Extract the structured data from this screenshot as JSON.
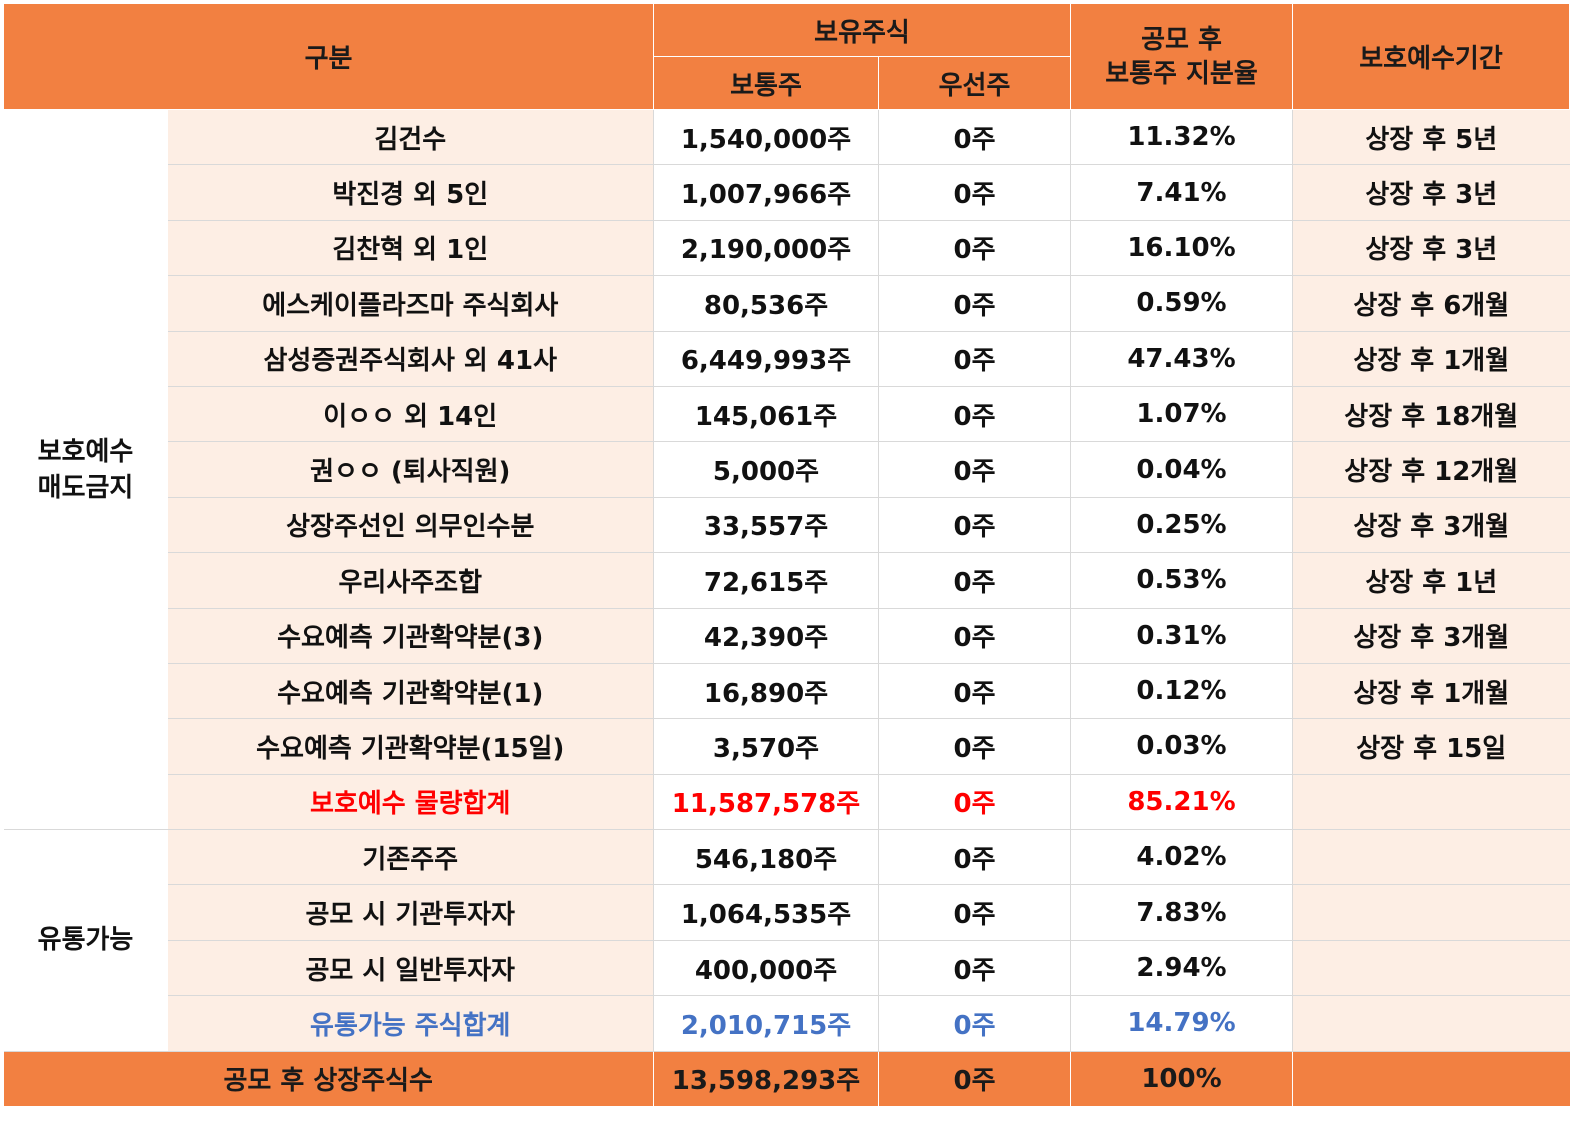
{
  "header": {
    "category": "구분",
    "holdings": "보유주식",
    "common": "보통주",
    "preferred": "우선주",
    "ratio_line1": "공모 후",
    "ratio_line2": "보통주 지분율",
    "lockup_period": "보호예수기간"
  },
  "groups": {
    "lockup_line1": "보호예수",
    "lockup_line2": "매도금지",
    "tradable": "유통가능"
  },
  "lockup_rows": [
    {
      "name": "김건수",
      "common": "1,540,000주",
      "preferred": "0주",
      "ratio": "11.32%",
      "period": "상장 후 5년"
    },
    {
      "name": "박진경 외 5인",
      "common": "1,007,966주",
      "preferred": "0주",
      "ratio": "7.41%",
      "period": "상장 후 3년"
    },
    {
      "name": "김찬혁 외 1인",
      "common": "2,190,000주",
      "preferred": "0주",
      "ratio": "16.10%",
      "period": "상장 후 3년"
    },
    {
      "name": "에스케이플라즈마 주식회사",
      "common": "80,536주",
      "preferred": "0주",
      "ratio": "0.59%",
      "period": "상장 후 6개월"
    },
    {
      "name": "삼성증권주식회사 외 41사",
      "common": "6,449,993주",
      "preferred": "0주",
      "ratio": "47.43%",
      "period": "상장 후 1개월"
    },
    {
      "name": "이ㅇㅇ 외 14인",
      "common": "145,061주",
      "preferred": "0주",
      "ratio": "1.07%",
      "period": "상장 후 18개월"
    },
    {
      "name": "권ㅇㅇ (퇴사직원)",
      "common": "5,000주",
      "preferred": "0주",
      "ratio": "0.04%",
      "period": "상장 후 12개월"
    },
    {
      "name": "상장주선인 의무인수분",
      "common": "33,557주",
      "preferred": "0주",
      "ratio": "0.25%",
      "period": "상장 후 3개월"
    },
    {
      "name": "우리사주조합",
      "common": "72,615주",
      "preferred": "0주",
      "ratio": "0.53%",
      "period": "상장 후 1년"
    },
    {
      "name": "수요예측 기관확약분(3)",
      "common": "42,390주",
      "preferred": "0주",
      "ratio": "0.31%",
      "period": "상장 후 3개월"
    },
    {
      "name": "수요예측 기관확약분(1)",
      "common": "16,890주",
      "preferred": "0주",
      "ratio": "0.12%",
      "period": "상장 후 1개월"
    },
    {
      "name": "수요예측 기관확약분(15일)",
      "common": "3,570주",
      "preferred": "0주",
      "ratio": "0.03%",
      "period": "상장 후 15일"
    }
  ],
  "lockup_total": {
    "name": "보호예수 물량합계",
    "common": "11,587,578주",
    "preferred": "0주",
    "ratio": "85.21%",
    "period": ""
  },
  "tradable_rows": [
    {
      "name": "기존주주",
      "common": "546,180주",
      "preferred": "0주",
      "ratio": "4.02%",
      "period": ""
    },
    {
      "name": "공모 시 기관투자자",
      "common": "1,064,535주",
      "preferred": "0주",
      "ratio": "7.83%",
      "period": ""
    },
    {
      "name": "공모 시 일반투자자",
      "common": "400,000주",
      "preferred": "0주",
      "ratio": "2.94%",
      "period": ""
    }
  ],
  "tradable_total": {
    "name": "유통가능 주식합계",
    "common": "2,010,715주",
    "preferred": "0주",
    "ratio": "14.79%",
    "period": ""
  },
  "grand_total": {
    "name": "공모 후 상장주식수",
    "common": "13,598,293주",
    "preferred": "0주",
    "ratio": "100%",
    "period": ""
  },
  "colors": {
    "header_bg": "#f28041",
    "row_tint": "#fdeee4",
    "lockup_total_text": "#ff0000",
    "tradable_total_text": "#4472c4"
  }
}
